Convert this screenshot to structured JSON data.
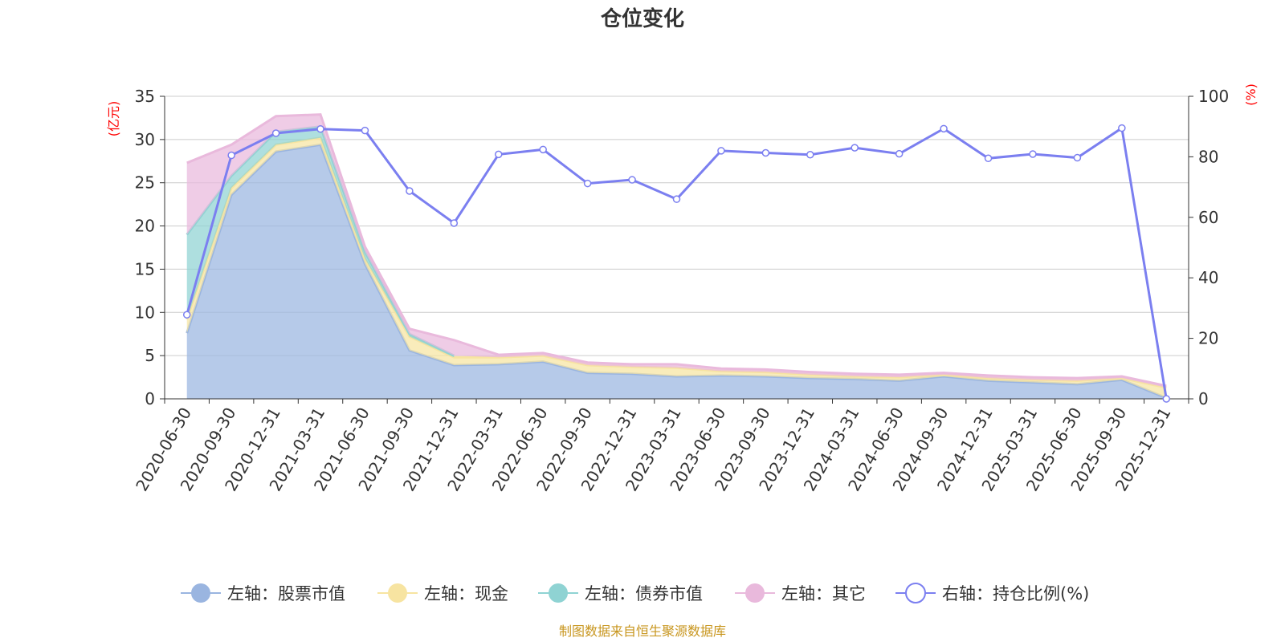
{
  "chart_data": {
    "type": "area",
    "title": "仓位变化",
    "y_left_unit": "(亿元)",
    "y_right_unit": "(%)",
    "y_left_range": [
      0,
      35
    ],
    "y_left_ticks": [
      "0",
      "5",
      "10",
      "15",
      "20",
      "25",
      "30",
      "35"
    ],
    "y_right_range": [
      0,
      100
    ],
    "y_right_ticks": [
      "0",
      "20",
      "40",
      "60",
      "80",
      "100"
    ],
    "grid": true,
    "legend_position": "bottom",
    "categories": [
      "2020-06-30",
      "2020-09-30",
      "2020-12-31",
      "2021-03-31",
      "2021-06-30",
      "2021-09-30",
      "2021-12-31",
      "2022-03-31",
      "2022-06-30",
      "2022-09-30",
      "2022-12-31",
      "2023-03-31",
      "2023-06-30",
      "2023-09-30",
      "2023-12-31",
      "2024-03-31",
      "2024-06-30",
      "2024-09-30",
      "2024-12-31",
      "2025-03-31",
      "2025-06-30",
      "2025-09-30",
      "2025-12-31"
    ],
    "series": [
      {
        "name": "左轴：股票市值",
        "axis": "left",
        "kind": "stacked-area",
        "color": "#9ab5e0",
        "values": [
          7.6,
          23.6,
          28.6,
          29.4,
          15.6,
          5.6,
          3.9,
          4.0,
          4.3,
          3.0,
          2.9,
          2.6,
          2.7,
          2.6,
          2.4,
          2.3,
          2.1,
          2.6,
          2.1,
          1.9,
          1.7,
          2.2,
          0.1
        ]
      },
      {
        "name": "左轴：现金",
        "axis": "left",
        "kind": "stacked-area",
        "color": "#f7e4a1",
        "values": [
          1.6,
          0.8,
          0.8,
          0.8,
          0.6,
          1.6,
          0.9,
          0.8,
          0.7,
          0.9,
          0.8,
          1.0,
          0.5,
          0.5,
          0.4,
          0.3,
          0.4,
          0.2,
          0.3,
          0.3,
          0.4,
          0.2,
          1.2
        ]
      },
      {
        "name": "左轴：债券市值",
        "axis": "left",
        "kind": "stacked-area",
        "color": "#8fd3d3",
        "values": [
          9.8,
          1.4,
          1.5,
          1.3,
          0.8,
          0.3,
          0.2,
          null,
          null,
          null,
          null,
          null,
          null,
          null,
          null,
          null,
          null,
          null,
          null,
          null,
          null,
          null,
          null
        ]
      },
      {
        "name": "左轴：其它",
        "axis": "left",
        "kind": "stacked-area",
        "color": "#e9b9dc",
        "values": [
          8.3,
          3.6,
          1.8,
          1.4,
          0.6,
          0.6,
          1.8,
          0.3,
          0.3,
          0.3,
          0.3,
          0.4,
          0.3,
          0.3,
          0.3,
          0.3,
          0.3,
          0.2,
          0.3,
          0.3,
          0.3,
          0.2,
          0.2
        ]
      },
      {
        "name": "右轴：持仓比例(%)",
        "axis": "right",
        "kind": "line",
        "color": "#7b7ff0",
        "values": [
          27.8,
          80.5,
          87.8,
          89.2,
          88.7,
          68.7,
          58.1,
          80.8,
          82.4,
          71.2,
          72.4,
          66.0,
          82.0,
          81.3,
          80.7,
          83.0,
          81.0,
          89.3,
          79.5,
          80.9,
          79.7,
          89.5,
          0.0
        ]
      }
    ]
  },
  "source_note": "制图数据来自恒生聚源数据库"
}
